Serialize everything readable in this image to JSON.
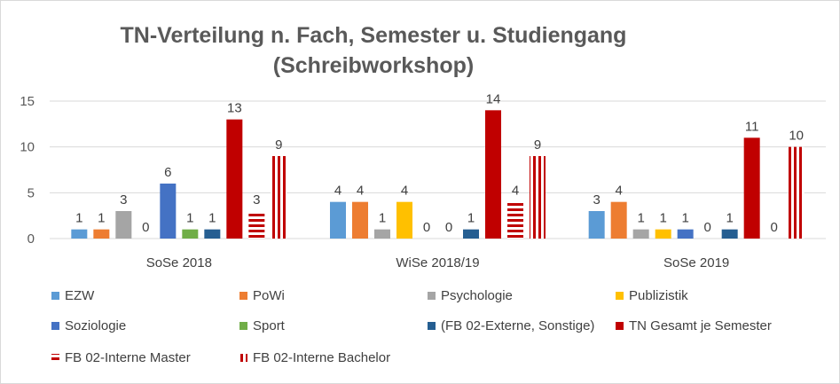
{
  "chart_data": {
    "type": "bar",
    "title_line1": "TN-Verteilung n. Fach, Semester u. Studiengang",
    "title_line2": "(Schreibworkshop)",
    "categories": [
      "SoSe 2018",
      "WiSe 2018/19",
      "SoSe 2019"
    ],
    "ylim": [
      0,
      15
    ],
    "yticks": [
      "0",
      "5",
      "10",
      "15"
    ],
    "legend_position": "bottom",
    "series": [
      {
        "name": "EZW",
        "color": "#5b9bd5",
        "pattern": "solid",
        "values": [
          1,
          4,
          3
        ]
      },
      {
        "name": "PoWi",
        "color": "#ed7d31",
        "pattern": "solid",
        "values": [
          1,
          4,
          4
        ]
      },
      {
        "name": "Psychologie",
        "color": "#a5a5a5",
        "pattern": "solid",
        "values": [
          3,
          1,
          1
        ]
      },
      {
        "name": "Publizistik",
        "color": "#ffc000",
        "pattern": "solid",
        "values": [
          0,
          4,
          1
        ]
      },
      {
        "name": "Soziologie",
        "color": "#4472c4",
        "pattern": "solid",
        "values": [
          6,
          0,
          1
        ]
      },
      {
        "name": "Sport",
        "color": "#70ad47",
        "pattern": "solid",
        "values": [
          1,
          0,
          0
        ]
      },
      {
        "name": "(FB 02-Externe, Sonstige)",
        "color": "#255e91",
        "pattern": "solid",
        "values": [
          1,
          1,
          1
        ]
      },
      {
        "name": "TN Gesamt je Semester",
        "color": "#c00000",
        "pattern": "solid",
        "values": [
          13,
          14,
          11
        ]
      },
      {
        "name": "FB 02-Interne Master",
        "color": "#c00000",
        "pattern": "horizontal-stripes",
        "values": [
          3,
          4,
          0
        ]
      },
      {
        "name": "FB 02-Interne Bachelor",
        "color": "#c00000",
        "pattern": "vertical-stripes",
        "values": [
          9,
          9,
          10
        ]
      }
    ]
  }
}
